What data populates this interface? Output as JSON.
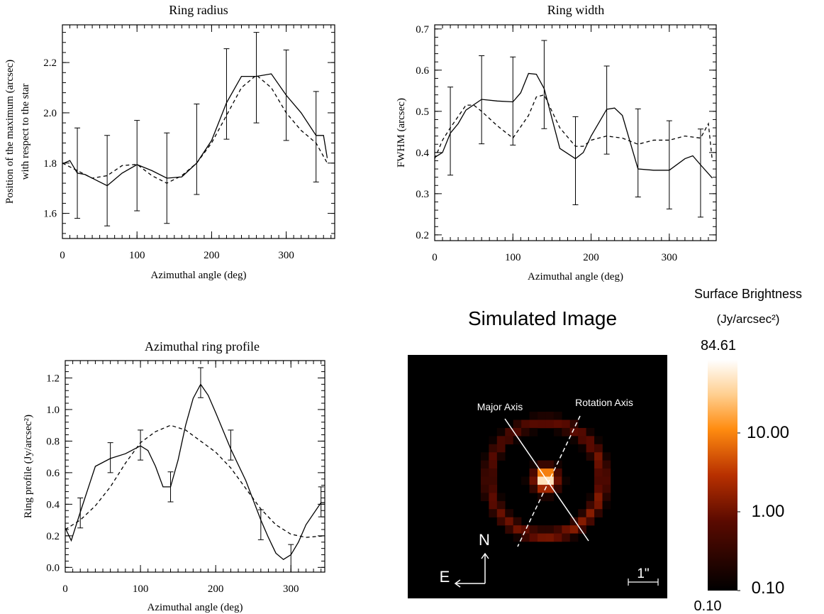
{
  "chart_data": [
    {
      "type": "line",
      "title": "Ring radius",
      "xlabel": "Azimuthal angle (deg)",
      "ylabel": [
        "Position of the maximum (arcsec)",
        "with respect to the star"
      ],
      "xlim": [
        0,
        365
      ],
      "xticks": [
        0,
        100,
        200,
        300
      ],
      "ylim": [
        1.5,
        2.35
      ],
      "yticks": [
        1.6,
        1.8,
        {
          "value": 2,
          "label": "2.0"
        },
        2.2
      ],
      "minor_ticks": true,
      "series": [
        {
          "style": "solid",
          "color": "#000000",
          "x": [
            0,
            10,
            20,
            30,
            60,
            80,
            100,
            120,
            140,
            160,
            180,
            200,
            220,
            240,
            260,
            280,
            300,
            320,
            340,
            350,
            355
          ],
          "values": [
            1.797,
            1.81,
            1.76,
            1.755,
            1.71,
            1.76,
            1.794,
            1.77,
            1.74,
            1.745,
            1.8,
            1.89,
            2.04,
            2.145,
            2.145,
            2.155,
            2.07,
            2.0,
            1.91,
            1.91,
            1.82
          ]
        },
        {
          "style": "dashed",
          "color": "#000000",
          "x": [
            0,
            20,
            40,
            60,
            80,
            100,
            120,
            140,
            160,
            180,
            200,
            220,
            240,
            260,
            280,
            300,
            320,
            340,
            355
          ],
          "values": [
            1.8,
            1.77,
            1.74,
            1.75,
            1.79,
            1.795,
            1.75,
            1.72,
            1.75,
            1.8,
            1.88,
            1.99,
            2.1,
            2.15,
            2.1,
            2.0,
            1.93,
            1.88,
            1.8
          ]
        },
        {
          "style": "errorbar",
          "color": "#000000",
          "x": [
            20,
            60,
            100,
            140,
            180,
            220,
            260,
            300,
            340
          ],
          "values": [
            1.76,
            1.73,
            1.79,
            1.74,
            1.855,
            2.075,
            2.14,
            2.07,
            1.905
          ],
          "errors": [
            0.18,
            0.18,
            0.18,
            0.18,
            0.18,
            0.18,
            0.18,
            0.18,
            0.18
          ]
        }
      ]
    },
    {
      "type": "line",
      "title": "Ring width",
      "xlabel": "Azimuthal angle (deg)",
      "ylabel": [
        "FWHM (arcsec)"
      ],
      "xlim": [
        0,
        360
      ],
      "xticks": [
        0,
        100,
        200,
        300
      ],
      "ylim": [
        0.186,
        0.71
      ],
      "yticks": [
        0.2,
        0.3,
        0.4,
        0.5,
        0.6,
        0.7
      ],
      "minor_ticks": true,
      "series": [
        {
          "style": "solid",
          "color": "#000000",
          "x": [
            0,
            10,
            20,
            30,
            40,
            60,
            80,
            100,
            110,
            120,
            130,
            140,
            160,
            180,
            190,
            200,
            220,
            230,
            240,
            260,
            280,
            300,
            320,
            330,
            340,
            355
          ],
          "values": [
            0.388,
            0.4,
            0.447,
            0.47,
            0.503,
            0.529,
            0.525,
            0.523,
            0.545,
            0.592,
            0.59,
            0.555,
            0.41,
            0.385,
            0.4,
            0.44,
            0.505,
            0.508,
            0.49,
            0.36,
            0.357,
            0.357,
            0.385,
            0.392,
            0.37,
            0.338
          ]
        },
        {
          "style": "dashed",
          "color": "#000000",
          "x": [
            0,
            10,
            20,
            40,
            50,
            60,
            80,
            100,
            120,
            130,
            140,
            160,
            180,
            190,
            200,
            220,
            240,
            260,
            280,
            300,
            320,
            340,
            350,
            355
          ],
          "values": [
            0.385,
            0.43,
            0.46,
            0.515,
            0.515,
            0.5,
            0.465,
            0.435,
            0.49,
            0.535,
            0.54,
            0.46,
            0.415,
            0.415,
            0.43,
            0.44,
            0.435,
            0.42,
            0.43,
            0.43,
            0.44,
            0.435,
            0.47,
            0.38
          ]
        },
        {
          "style": "errorbar",
          "color": "#000000",
          "x": [
            20,
            60,
            100,
            140,
            180,
            220,
            260,
            300,
            340
          ],
          "values": [
            0.452,
            0.528,
            0.525,
            0.565,
            0.38,
            0.503,
            0.399,
            0.37,
            0.35
          ],
          "errors": [
            0.107,
            0.107,
            0.107,
            0.107,
            0.107,
            0.107,
            0.107,
            0.107,
            0.107
          ]
        }
      ]
    },
    {
      "type": "line",
      "title": "Azimuthal ring profile",
      "xlabel": "Azimuthal angle (deg)",
      "ylabel": [
        "Ring profile (Jy/arcsec²)"
      ],
      "xlim": [
        0,
        345
      ],
      "xticks": [
        0,
        100,
        200,
        300
      ],
      "ylim": [
        -0.03,
        1.31
      ],
      "yticks": [
        {
          "value": 0,
          "label": "0.0"
        },
        0.2,
        0.4,
        0.6,
        0.8,
        {
          "value": 1,
          "label": "1.0"
        },
        1.2
      ],
      "minor_ticks": true,
      "series": [
        {
          "style": "solid",
          "color": "#000000",
          "x": [
            0,
            8,
            20,
            40,
            60,
            80,
            100,
            110,
            120,
            130,
            140,
            150,
            160,
            170,
            180,
            190,
            200,
            220,
            240,
            260,
            270,
            280,
            290,
            300,
            310,
            320,
            340,
            345
          ],
          "values": [
            0.25,
            0.17,
            0.35,
            0.64,
            0.69,
            0.72,
            0.77,
            0.74,
            0.64,
            0.51,
            0.51,
            0.68,
            0.9,
            1.07,
            1.16,
            1.09,
            0.98,
            0.75,
            0.55,
            0.3,
            0.19,
            0.09,
            0.05,
            0.08,
            0.16,
            0.27,
            0.41,
            0.41
          ]
        },
        {
          "style": "dashed",
          "color": "#000000",
          "x": [
            0,
            20,
            40,
            60,
            80,
            100,
            120,
            140,
            160,
            180,
            200,
            220,
            240,
            260,
            280,
            300,
            320,
            345
          ],
          "values": [
            0.24,
            0.3,
            0.39,
            0.51,
            0.66,
            0.79,
            0.86,
            0.9,
            0.87,
            0.8,
            0.73,
            0.63,
            0.5,
            0.37,
            0.27,
            0.21,
            0.19,
            0.2
          ]
        },
        {
          "style": "errorbar",
          "color": "#000000",
          "x": [
            20,
            60,
            100,
            140,
            180,
            220,
            260,
            300,
            340
          ],
          "values": [
            0.345,
            0.695,
            0.775,
            0.51,
            1.17,
            0.775,
            0.27,
            0.05,
            0.415
          ],
          "errors": [
            0.095,
            0.095,
            0.095,
            0.095,
            0.095,
            0.095,
            0.095,
            0.095,
            0.095
          ]
        }
      ]
    }
  ],
  "image_panel": {
    "title": "Simulated Image",
    "labels": {
      "major_axis": "Major Axis",
      "rotation_axis": "Rotation Axis",
      "north": "N",
      "east": "E",
      "scale": "1\""
    },
    "colorbar": {
      "title": "Surface Brightness",
      "unit": "(Jy/arcsec²)",
      "log": true,
      "clim": [
        {
          "value": 0.1,
          "label": "0.10"
        },
        84.61
      ],
      "ticks": [
        {
          "value": 10,
          "label": "10.00"
        },
        {
          "value": 1,
          "label": "1.00"
        },
        {
          "value": 0.1,
          "label": "0.10"
        }
      ]
    }
  }
}
